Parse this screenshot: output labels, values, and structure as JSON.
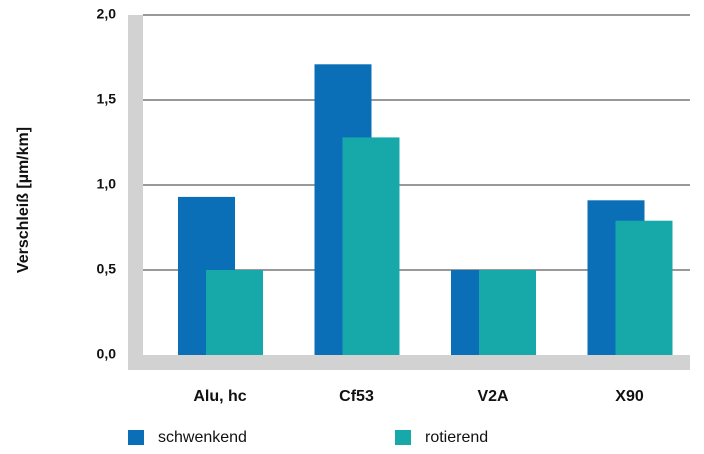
{
  "chart_data": {
    "type": "bar",
    "y_label": "Verschleiß [µm/km]",
    "categories": [
      "Alu, hc",
      "Cf53",
      "V2A",
      "X90"
    ],
    "series": [
      {
        "name": "schwenkend",
        "color": "#0b6fb8",
        "values": [
          0.93,
          1.71,
          0.5,
          0.91
        ]
      },
      {
        "name": "rotierend",
        "color": "#17a9a9",
        "values": [
          0.5,
          1.28,
          0.5,
          0.79
        ]
      }
    ],
    "ylim": [
      0,
      2
    ],
    "yticks": [
      {
        "value": 0,
        "label": "0,0"
      },
      {
        "value": 0.5,
        "label": "0,5"
      },
      {
        "value": 1,
        "label": "1,0"
      },
      {
        "value": 1.5,
        "label": "1,5"
      },
      {
        "value": 2,
        "label": "2,0"
      }
    ],
    "grid": true
  }
}
